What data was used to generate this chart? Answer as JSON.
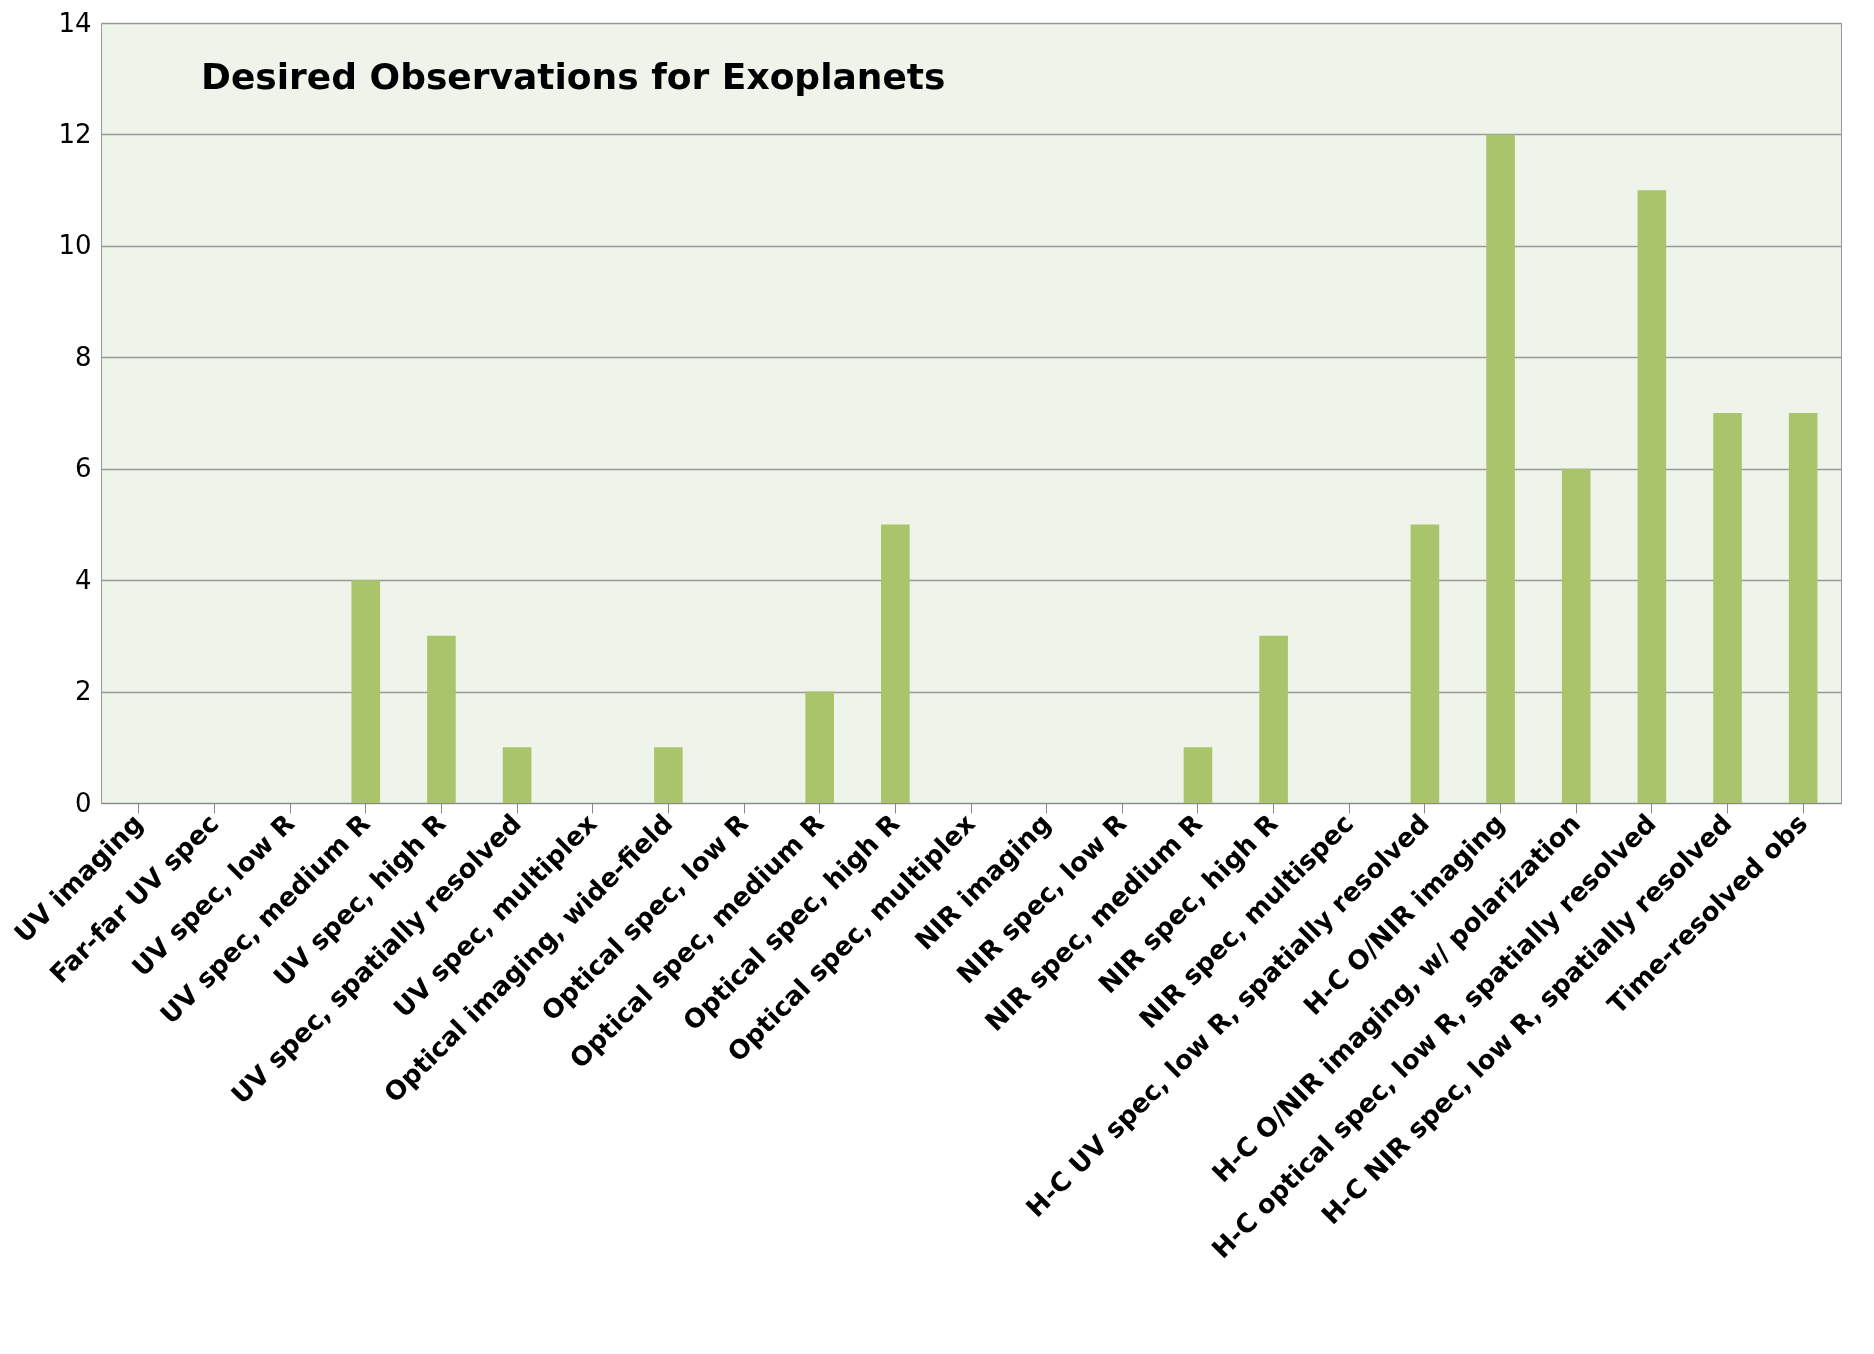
{
  "chart_data": {
    "type": "bar",
    "title": "Desired Observations for Exoplanets",
    "categories": [
      "UV imaging",
      "Far-far UV spec",
      "UV spec, low R",
      "UV spec, medium R",
      "UV spec, high R",
      "UV spec, spatially resolved",
      "UV spec, multiplex",
      "Optical imaging, wide-field",
      "Optical spec, low R",
      "Optical spec, medium R",
      "Optical spec, high R",
      "Optical spec, multiplex",
      "NIR imaging",
      "NIR spec, low R",
      "NIR spec, medium R",
      "NIR spec, high R",
      "NIR spec, multispec",
      "H-C UV spec, low R, spatially resolved",
      "H-C O/NIR imaging",
      "H-C O/NIR imaging, w/ polarization",
      "H-C optical spec, low R, spatially resolved",
      "H-C NIR spec, low R, spatially resolved",
      "Time-resolved obs"
    ],
    "values": [
      0,
      0,
      0,
      4,
      3,
      1,
      0,
      1,
      0,
      2,
      5,
      0,
      0,
      0,
      1,
      3,
      0,
      5,
      12,
      6,
      11,
      7,
      7
    ],
    "color": "#a9c46b",
    "ylim": [
      0,
      14
    ],
    "yticks": [
      0,
      2,
      4,
      6,
      8,
      10,
      12,
      14
    ],
    "grid": "y"
  }
}
